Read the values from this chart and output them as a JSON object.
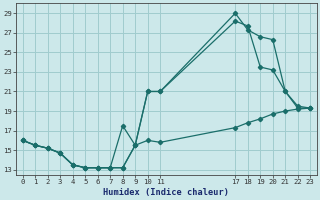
{
  "xlabel": "Humidex (Indice chaleur)",
  "background_color": "#cce8ea",
  "grid_color": "#a0ccce",
  "line_color": "#1a6e6a",
  "xlim": [
    -0.5,
    23.5
  ],
  "ylim": [
    12.5,
    30.0
  ],
  "xticks": [
    0,
    1,
    2,
    3,
    4,
    5,
    6,
    7,
    8,
    9,
    10,
    11,
    17,
    18,
    19,
    20,
    21,
    22,
    23
  ],
  "yticks": [
    13,
    15,
    17,
    19,
    21,
    23,
    25,
    27,
    29
  ],
  "line1_x": [
    0,
    1,
    2,
    3,
    4,
    5,
    6,
    7,
    8,
    9,
    10,
    11,
    17,
    18,
    19,
    20,
    21,
    22,
    23
  ],
  "line1_y": [
    16.0,
    15.5,
    15.2,
    14.7,
    13.5,
    13.2,
    13.2,
    13.2,
    13.2,
    15.5,
    21.0,
    21.0,
    29.0,
    27.3,
    26.6,
    26.3,
    21.0,
    19.5,
    19.3
  ],
  "line2_x": [
    0,
    1,
    2,
    3,
    4,
    5,
    6,
    7,
    8,
    9,
    10,
    11,
    17,
    18,
    19,
    20,
    21,
    22,
    23
  ],
  "line2_y": [
    16.0,
    15.5,
    15.2,
    14.7,
    13.5,
    13.2,
    13.2,
    13.2,
    17.5,
    15.5,
    21.0,
    21.0,
    28.2,
    27.7,
    23.5,
    23.2,
    21.0,
    19.3,
    19.3
  ],
  "line3_x": [
    0,
    1,
    2,
    3,
    4,
    5,
    6,
    7,
    8,
    9,
    10,
    11,
    17,
    18,
    19,
    20,
    21,
    22,
    23
  ],
  "line3_y": [
    16.0,
    15.5,
    15.2,
    14.7,
    13.5,
    13.2,
    13.2,
    13.2,
    13.2,
    15.5,
    16.0,
    15.8,
    17.3,
    17.8,
    18.2,
    18.7,
    19.0,
    19.2,
    19.3
  ]
}
